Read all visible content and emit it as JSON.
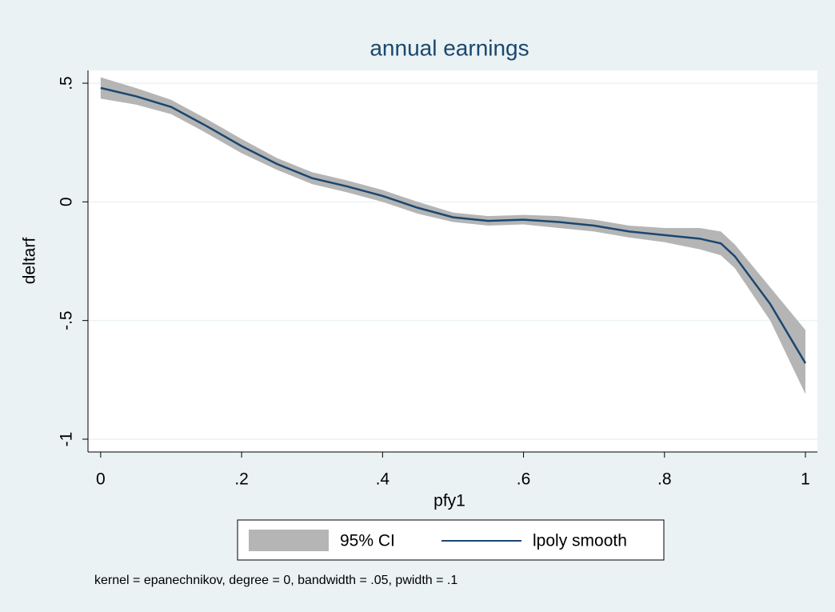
{
  "chart_data": {
    "type": "line",
    "title": "annual earnings",
    "x_label": "pfy1",
    "y_label": "deltarf",
    "note": "kernel = epanechnikov, degree = 0, bandwidth = .05, pwidth = .1",
    "x": [
      0,
      0.05,
      0.1,
      0.15,
      0.2,
      0.25,
      0.3,
      0.35,
      0.4,
      0.45,
      0.5,
      0.55,
      0.6,
      0.65,
      0.7,
      0.75,
      0.8,
      0.85,
      0.88,
      0.9,
      0.95,
      1
    ],
    "series": [
      {
        "name": "95% CI",
        "color": "#b5b5b5",
        "upper": [
          0.525,
          0.48,
          0.43,
          0.35,
          0.265,
          0.185,
          0.125,
          0.09,
          0.05,
          0.0,
          -0.045,
          -0.06,
          -0.055,
          -0.06,
          -0.075,
          -0.1,
          -0.11,
          -0.11,
          -0.125,
          -0.18,
          -0.36,
          -0.54
        ],
        "lower": [
          0.435,
          0.41,
          0.37,
          0.29,
          0.205,
          0.135,
          0.075,
          0.04,
          0.0,
          -0.05,
          -0.085,
          -0.1,
          -0.095,
          -0.11,
          -0.125,
          -0.15,
          -0.17,
          -0.2,
          -0.225,
          -0.28,
          -0.5,
          -0.81
        ]
      },
      {
        "name": "lpoly smooth",
        "color": "#1a476f",
        "values": [
          0.48,
          0.445,
          0.4,
          0.32,
          0.235,
          0.16,
          0.1,
          0.065,
          0.025,
          -0.025,
          -0.065,
          -0.08,
          -0.075,
          -0.085,
          -0.1,
          -0.125,
          -0.14,
          -0.155,
          -0.175,
          -0.23,
          -0.43,
          -0.68
        ]
      }
    ],
    "xlim": [
      -0.018,
      1.017
    ],
    "ylim": [
      -1.054,
      0.554
    ],
    "xticks": [
      0,
      {
        "value": 0.2,
        "label": ".2"
      },
      {
        "value": 0.4,
        "label": ".4"
      },
      {
        "value": 0.6,
        "label": ".6"
      },
      {
        "value": 0.8,
        "label": ".8"
      },
      1
    ],
    "yticks": [
      {
        "value": 0.5,
        "label": ".5"
      },
      0,
      {
        "value": -0.5,
        "label": "-.5"
      },
      -1
    ],
    "grid": true
  }
}
